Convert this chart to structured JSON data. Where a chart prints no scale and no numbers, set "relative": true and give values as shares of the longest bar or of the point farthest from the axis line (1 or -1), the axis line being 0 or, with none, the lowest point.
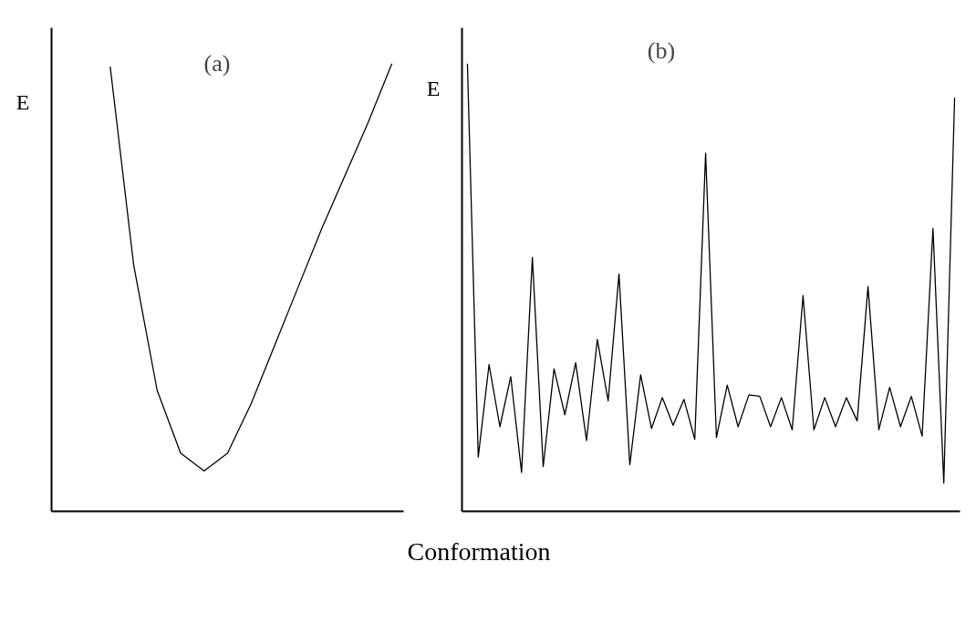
{
  "chart_data": [
    {
      "type": "line",
      "title": "(a)",
      "ylabel": "E",
      "relative": true,
      "tick_labels": false,
      "marker": "none",
      "line_style": "solid",
      "categories": [
        null,
        null,
        null,
        null,
        null,
        null,
        null,
        null,
        null,
        null,
        null,
        null,
        null,
        null,
        null
      ],
      "series": [
        {
          "color": "#000000",
          "values": [
            null,
            null,
            0.993,
            0.55,
            0.27,
            0.13,
            0.09,
            0.13,
            0.24,
            0.37,
            0.5,
            0.63,
            0.75,
            0.87,
            1.0
          ]
        }
      ]
    },
    {
      "type": "line",
      "title": "(b)",
      "ylabel": "E",
      "xlabel": "Conformation",
      "relative": true,
      "tick_labels": false,
      "marker": "none",
      "line_style": "solid",
      "categories": [
        null,
        null,
        null,
        null,
        null,
        null,
        null,
        null,
        null,
        null,
        null,
        null,
        null,
        null,
        null,
        null,
        null,
        null,
        null,
        null,
        null,
        null,
        null,
        null,
        null,
        null,
        null,
        null,
        null,
        null,
        null,
        null,
        null,
        null,
        null,
        null,
        null,
        null,
        null,
        null,
        null,
        null,
        null,
        null,
        null,
        null
      ],
      "series": [
        {
          "color": "#000000",
          "values": [
            1.0,
            0.121,
            0.328,
            0.189,
            0.301,
            0.087,
            0.567,
            0.1,
            0.318,
            0.216,
            0.332,
            0.158,
            0.384,
            0.247,
            0.53,
            0.104,
            0.305,
            0.185,
            0.254,
            0.192,
            0.25,
            0.161,
            0.8,
            0.165,
            0.282,
            0.189,
            0.26,
            0.257,
            0.189,
            0.254,
            0.182,
            0.482,
            0.182,
            0.254,
            0.189,
            0.254,
            0.202,
            0.502,
            0.182,
            0.277,
            0.189,
            0.257,
            0.168,
            0.632,
            0.063,
            0.924
          ]
        }
      ]
    }
  ]
}
